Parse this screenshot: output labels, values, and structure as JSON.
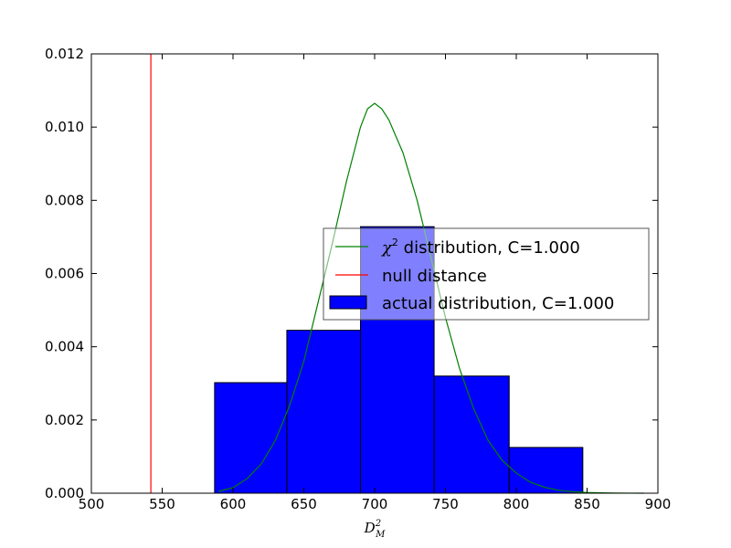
{
  "chart_data": {
    "type": "histogram",
    "xlabel": "D",
    "xlabel_sub": "M",
    "xlabel_sup": "2",
    "xlim": [
      500,
      900
    ],
    "ylim": [
      0,
      0.012
    ],
    "xticks": [
      "500",
      "550",
      "600",
      "650",
      "700",
      "750",
      "800",
      "850",
      "900"
    ],
    "yticks": [
      "0.000",
      "0.002",
      "0.004",
      "0.006",
      "0.008",
      "0.010",
      "0.012"
    ],
    "grid": false,
    "legend_position": "center-right",
    "histogram": {
      "name": "actual distribution, C=1.000",
      "color": "#0000ff",
      "bin_edges": [
        587,
        638,
        690,
        742,
        795,
        847
      ],
      "values": [
        0.00302,
        0.00445,
        0.00728,
        0.0032,
        0.00125
      ]
    },
    "chi2_curve": {
      "name_symbol": "χ",
      "name_sup": "2",
      "name_rest": " distribution, C=1.000",
      "color": "#008000",
      "x": [
        590,
        600,
        610,
        620,
        630,
        640,
        650,
        660,
        670,
        680,
        690,
        695,
        700,
        705,
        710,
        720,
        730,
        740,
        750,
        760,
        770,
        780,
        790,
        800,
        810,
        820,
        830,
        840,
        850,
        860,
        870,
        880,
        890
      ],
      "y": [
        5e-05,
        0.00015,
        0.0004,
        0.0008,
        0.00145,
        0.0024,
        0.0036,
        0.0052,
        0.0068,
        0.0085,
        0.01,
        0.0105,
        0.01065,
        0.0105,
        0.0102,
        0.0093,
        0.008,
        0.0064,
        0.0048,
        0.0034,
        0.0023,
        0.00145,
        0.0009,
        0.00055,
        0.0003,
        0.00016,
        8e-05,
        4e-05,
        2e-05,
        1e-05,
        5e-06,
        2e-06,
        0.0
      ]
    },
    "null_line": {
      "name": "null distance",
      "x": 542,
      "color": "#ff0000"
    }
  }
}
